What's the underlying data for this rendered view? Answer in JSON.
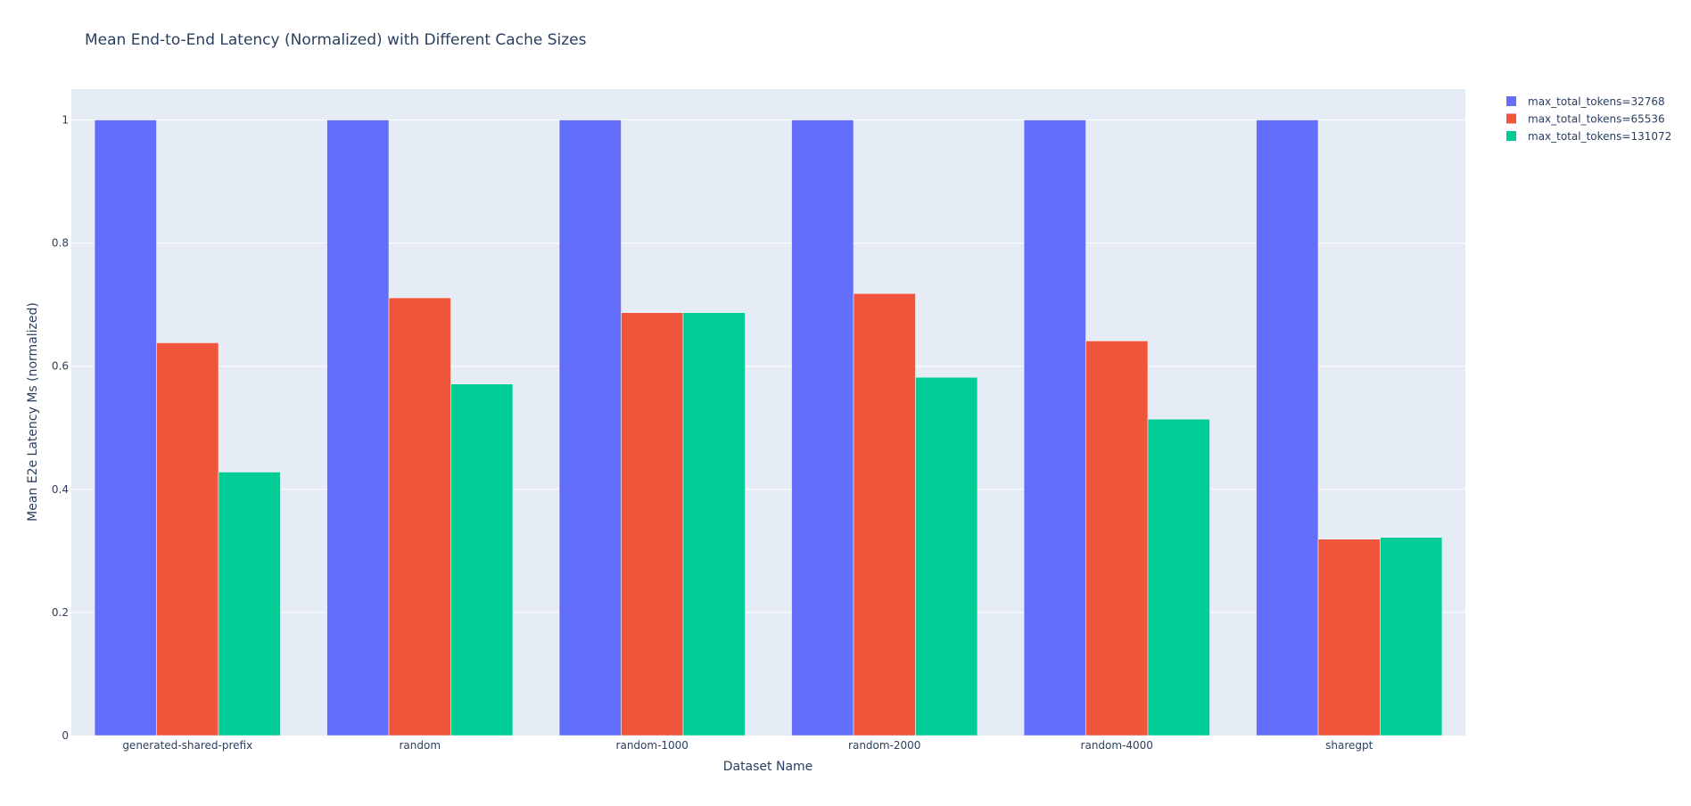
{
  "chart_data": {
    "type": "bar",
    "title": "Mean End-to-End Latency (Normalized) with Different Cache Sizes",
    "xlabel": "Dataset Name",
    "ylabel": "Mean E2e Latency Ms (normalized)",
    "categories": [
      "generated-shared-prefix",
      "random",
      "random-1000",
      "random-2000",
      "random-4000",
      "sharegpt"
    ],
    "ylim": [
      0,
      1.05
    ],
    "yticks": [
      0,
      0.2,
      0.4,
      0.6,
      0.8,
      1
    ],
    "ytick_labels": [
      "0",
      "0.2",
      "0.4",
      "0.6",
      "0.8",
      "1"
    ],
    "grid": true,
    "legend_position": "top-right",
    "background_color": "#E5ECF6",
    "series": [
      {
        "name": "max_total_tokens=32768",
        "color": "#636EFA",
        "values": [
          1,
          1,
          1,
          1,
          1,
          1
        ]
      },
      {
        "name": "max_total_tokens=65536",
        "color": "#EF553B",
        "values": [
          0.638,
          0.711,
          0.687,
          0.718,
          0.641,
          0.319
        ]
      },
      {
        "name": "max_total_tokens=131072",
        "color": "#00CC96",
        "values": [
          0.428,
          0.571,
          0.687,
          0.582,
          0.514,
          0.322
        ]
      }
    ]
  }
}
